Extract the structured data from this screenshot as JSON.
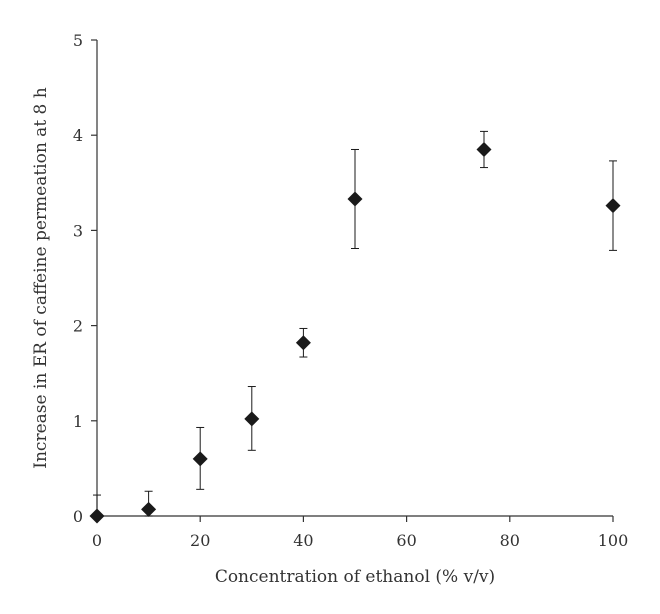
{
  "chart_data": {
    "type": "scatter",
    "title": "",
    "xlabel": "Concentration of ethanol (% v/v)",
    "ylabel": "Increase in ER of caffeine permeation at 8 h",
    "xlim": [
      0,
      100
    ],
    "ylim": [
      0,
      5
    ],
    "xticks": [
      0,
      20,
      40,
      60,
      80,
      100
    ],
    "yticks": [
      0,
      1,
      2,
      3,
      4,
      5
    ],
    "grid": false,
    "legend": "none",
    "marker": "diamond",
    "error_bars": "upper and lower whiskers with caps",
    "series": [
      {
        "x": [
          0,
          10,
          20,
          30,
          40,
          50,
          75,
          100
        ],
        "y": [
          0.0,
          0.07,
          0.6,
          1.02,
          1.82,
          3.33,
          3.85,
          3.26
        ],
        "yerr_low": [
          0.0,
          0.07,
          0.32,
          0.33,
          0.15,
          0.52,
          0.19,
          0.47
        ],
        "yerr_high": [
          0.22,
          0.19,
          0.33,
          0.34,
          0.15,
          0.52,
          0.19,
          0.47
        ]
      }
    ],
    "colors": {
      "marker": "#1a1a1a",
      "axis": "#333333",
      "text": "#333333"
    }
  }
}
